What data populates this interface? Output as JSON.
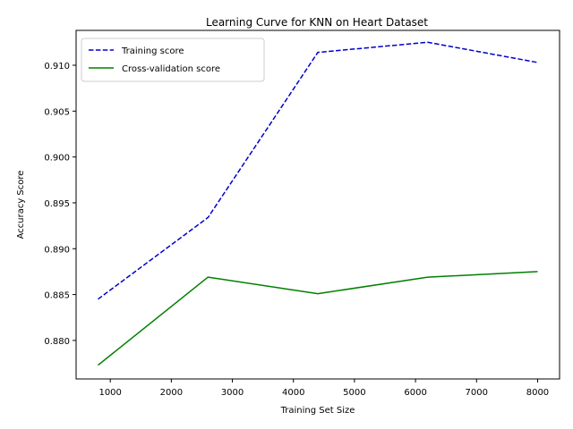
{
  "chart_data": {
    "type": "line",
    "title": "Learning Curve for KNN on Heart Dataset",
    "xlabel": "Training Set Size",
    "ylabel": "Accuracy Score",
    "xlim": [
      440,
      8360
    ],
    "ylim": [
      0.8758,
      0.9138
    ],
    "xticks": [
      1000,
      2000,
      3000,
      4000,
      5000,
      6000,
      7000,
      8000
    ],
    "yticks": [
      0.88,
      0.885,
      0.89,
      0.895,
      0.9,
      0.905,
      0.91
    ],
    "xtick_labels": [
      "1000",
      "2000",
      "3000",
      "4000",
      "5000",
      "6000",
      "7000",
      "8000"
    ],
    "ytick_labels": [
      "0.880",
      "0.885",
      "0.890",
      "0.895",
      "0.900",
      "0.905",
      "0.910"
    ],
    "grid": false,
    "legend_position": "top-left",
    "x": [
      800,
      2600,
      4400,
      6200,
      8000
    ],
    "series": [
      {
        "name": "Training score",
        "values": [
          0.8845,
          0.8934,
          0.9114,
          0.9125,
          0.9103
        ],
        "color": "#0000cc",
        "style": "dashed"
      },
      {
        "name": "Cross-validation score",
        "values": [
          0.8773,
          0.8869,
          0.8851,
          0.8869,
          0.8875
        ],
        "color": "#008000",
        "style": "solid"
      }
    ]
  }
}
